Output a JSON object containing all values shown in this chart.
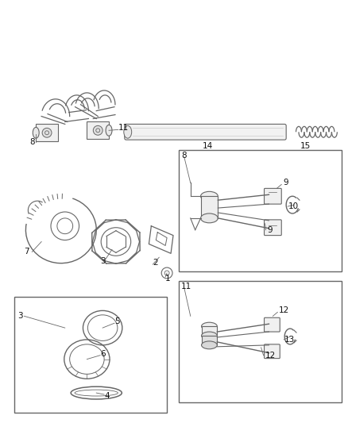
{
  "background": "#ffffff",
  "figsize": [
    4.38,
    5.33
  ],
  "dpi": 100,
  "line_color": "#666666",
  "light_gray": "#aaaaaa",
  "dark_color": "#444444",
  "font_size": 7.5
}
